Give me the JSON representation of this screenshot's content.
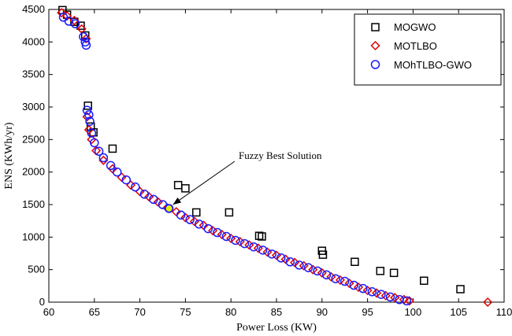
{
  "chart_data": {
    "type": "scatter",
    "xlabel": "Power Loss (KW)",
    "ylabel": "ENS (KWh/yr)",
    "xlim": [
      60,
      110
    ],
    "ylim": [
      0,
      4500
    ],
    "xticks": [
      "60",
      "65",
      "70",
      "75",
      "80",
      "85",
      "90",
      "95",
      "100",
      "105",
      "110"
    ],
    "yticks": [
      "0",
      "500",
      "1000",
      "1500",
      "2000",
      "2500",
      "3000",
      "3500",
      "4000",
      "4500"
    ],
    "grid": false,
    "legend_position": "top-right",
    "annotation": {
      "text": "Fuzzy Best Solution",
      "x": 73.2,
      "y": 1440
    },
    "highlight_point": {
      "x": 73.2,
      "y": 1440,
      "color": "#e6f000"
    },
    "series": [
      {
        "name": "MOGWO",
        "marker": "square",
        "color": "#000000",
        "points": [
          [
            61.5,
            4490
          ],
          [
            62.0,
            4420
          ],
          [
            62.8,
            4310
          ],
          [
            63.5,
            4250
          ],
          [
            64.0,
            4100
          ],
          [
            64.3,
            3020
          ],
          [
            64.6,
            2700
          ],
          [
            64.9,
            2610
          ],
          [
            67.0,
            2360
          ],
          [
            74.2,
            1800
          ],
          [
            75.0,
            1750
          ],
          [
            76.2,
            1380
          ],
          [
            79.8,
            1380
          ],
          [
            83.1,
            1020
          ],
          [
            83.4,
            1010
          ],
          [
            90.0,
            790
          ],
          [
            90.1,
            730
          ],
          [
            93.6,
            620
          ],
          [
            96.4,
            480
          ],
          [
            97.9,
            450
          ],
          [
            101.2,
            330
          ],
          [
            105.2,
            200
          ]
        ]
      },
      {
        "name": "MOTLBO",
        "marker": "diamond",
        "color": "#e00000",
        "points": [
          [
            61.4,
            4450
          ],
          [
            62.0,
            4400
          ],
          [
            62.8,
            4330
          ],
          [
            63.6,
            4200
          ],
          [
            64.1,
            4050
          ],
          [
            64.2,
            2850
          ],
          [
            64.4,
            2650
          ],
          [
            64.7,
            2500
          ],
          [
            65.2,
            2330
          ],
          [
            66.0,
            2180
          ],
          [
            67.0,
            2050
          ],
          [
            68.0,
            1920
          ],
          [
            69.0,
            1800
          ],
          [
            70.0,
            1700
          ],
          [
            71.0,
            1620
          ],
          [
            72.0,
            1540
          ],
          [
            73.0,
            1450
          ],
          [
            74.0,
            1390
          ],
          [
            75.0,
            1300
          ],
          [
            76.0,
            1240
          ],
          [
            77.0,
            1180
          ],
          [
            78.0,
            1100
          ],
          [
            79.0,
            1040
          ],
          [
            80.0,
            980
          ],
          [
            81.0,
            930
          ],
          [
            82.0,
            880
          ],
          [
            83.0,
            830
          ],
          [
            84.0,
            770
          ],
          [
            85.0,
            720
          ],
          [
            86.0,
            660
          ],
          [
            87.0,
            610
          ],
          [
            88.0,
            560
          ],
          [
            89.0,
            500
          ],
          [
            90.0,
            450
          ],
          [
            91.0,
            390
          ],
          [
            92.0,
            340
          ],
          [
            93.0,
            290
          ],
          [
            94.0,
            230
          ],
          [
            95.0,
            180
          ],
          [
            96.0,
            140
          ],
          [
            97.0,
            100
          ],
          [
            98.0,
            70
          ],
          [
            99.0,
            40
          ],
          [
            99.6,
            20
          ],
          [
            108.2,
            0
          ]
        ]
      },
      {
        "name": "MOhTLBO-GWO",
        "marker": "circle",
        "color": "#1a1aff",
        "points": [
          [
            61.6,
            4380
          ],
          [
            62.2,
            4320
          ],
          [
            62.9,
            4280
          ],
          [
            63.8,
            4080
          ],
          [
            64.0,
            4000
          ],
          [
            64.1,
            3950
          ],
          [
            64.2,
            2950
          ],
          [
            64.4,
            2880
          ],
          [
            64.5,
            2780
          ],
          [
            64.7,
            2600
          ],
          [
            65.0,
            2450
          ],
          [
            65.5,
            2320
          ],
          [
            66.0,
            2220
          ],
          [
            66.8,
            2100
          ],
          [
            67.5,
            2000
          ],
          [
            68.5,
            1880
          ],
          [
            69.5,
            1770
          ],
          [
            70.5,
            1660
          ],
          [
            71.5,
            1580
          ],
          [
            72.5,
            1500
          ],
          [
            73.2,
            1440
          ],
          [
            74.5,
            1340
          ],
          [
            75.5,
            1270
          ],
          [
            76.5,
            1200
          ],
          [
            77.5,
            1130
          ],
          [
            78.5,
            1070
          ],
          [
            79.5,
            1010
          ],
          [
            80.5,
            950
          ],
          [
            81.5,
            900
          ],
          [
            82.5,
            850
          ],
          [
            83.5,
            800
          ],
          [
            84.5,
            740
          ],
          [
            85.5,
            680
          ],
          [
            86.5,
            620
          ],
          [
            87.5,
            570
          ],
          [
            88.5,
            530
          ],
          [
            89.5,
            480
          ],
          [
            90.5,
            420
          ],
          [
            91.5,
            360
          ],
          [
            92.5,
            320
          ],
          [
            93.5,
            260
          ],
          [
            94.5,
            210
          ],
          [
            95.5,
            160
          ],
          [
            96.5,
            120
          ],
          [
            97.5,
            80
          ],
          [
            98.5,
            40
          ],
          [
            99.3,
            20
          ]
        ]
      }
    ]
  }
}
